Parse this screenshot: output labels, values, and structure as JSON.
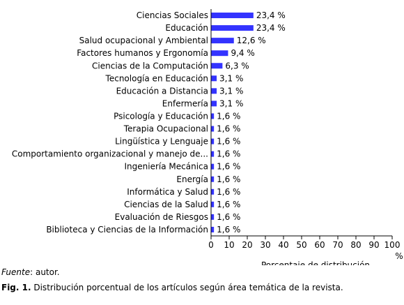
{
  "chart_data": {
    "type": "bar",
    "orientation": "horizontal",
    "categories": [
      "Ciencias Sociales",
      "Educación",
      "Salud ocupacional y Ambiental",
      "Factores humanos y Ergonomía",
      "Ciencias de la Computación",
      "Tecnología en Educación",
      "Educación a Distancia",
      "Enfermería",
      "Psicología y Educación",
      "Terapia Ocupacional",
      "Lingüística y Lenguaje",
      "Comportamiento organizacional y manejo de...",
      "Ingeniería Mecánica",
      "Energía",
      "Informática y Salud",
      "Ciencias de la Salud",
      "Evaluación de Riesgos",
      "Biblioteca y Ciencias de la Información"
    ],
    "values": [
      23.4,
      23.4,
      12.6,
      9.4,
      6.3,
      3.1,
      3.1,
      3.1,
      1.6,
      1.6,
      1.6,
      1.6,
      1.6,
      1.6,
      1.6,
      1.6,
      1.6,
      1.6
    ],
    "value_labels": [
      "23,4 %",
      "23,4 %",
      "12,6 %",
      "9,4 %",
      "6,3 %",
      "3,1 %",
      "3,1 %",
      "3,1 %",
      "1,6 %",
      "1,6 %",
      "1,6 %",
      "1,6 %",
      "1,6 %",
      "1,6 %",
      "1,6 %",
      "1,6 %",
      "1,6 %",
      "1,6 %"
    ],
    "xlim": [
      0,
      100
    ],
    "xticks": [
      "0",
      "10",
      "20",
      "30",
      "40",
      "50",
      "60",
      "70",
      "80",
      "90",
      "100"
    ],
    "x_unit": "%",
    "xlabel": "Porcentaje de distribución",
    "bar_color": "#3333ff",
    "grid": false
  },
  "source": {
    "label": "Fuente",
    "text": ": autor."
  },
  "caption": {
    "label": "Fig. 1.",
    "text": " Distribución porcentual de los artículos según área temática de la revista."
  }
}
